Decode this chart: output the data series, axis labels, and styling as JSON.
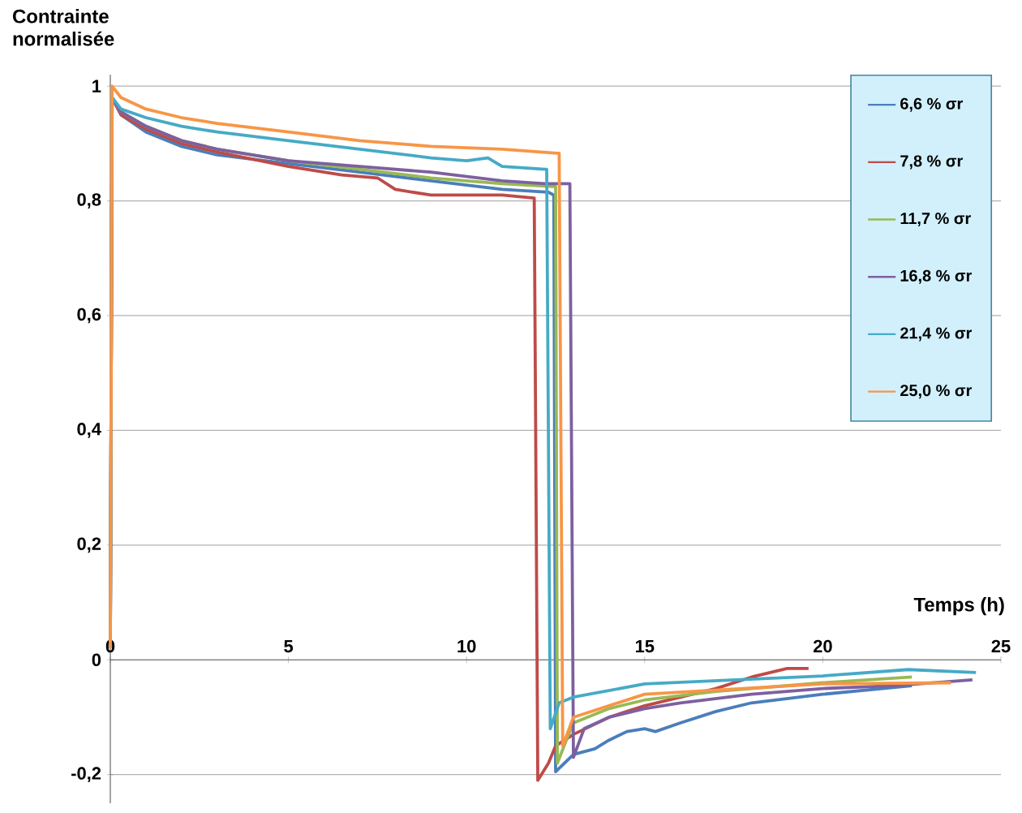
{
  "chart_data": {
    "type": "line",
    "xlabel": "Temps (h)",
    "ylabel": "Contrainte normalisée",
    "xlim": [
      0,
      25
    ],
    "ylim": [
      -0.25,
      1.02
    ],
    "xticks": [
      0,
      5,
      10,
      15,
      20,
      25
    ],
    "yticks": [
      {
        "value": -0.2,
        "label": "-0,2"
      },
      0,
      {
        "value": 0.2,
        "label": "0,2"
      },
      {
        "value": 0.4,
        "label": "0,4"
      },
      {
        "value": 0.6,
        "label": "0,6"
      },
      {
        "value": 0.8,
        "label": "0,8"
      },
      1
    ],
    "grid": "y",
    "legend": "top right",
    "marker": "none",
    "line_style": "solid",
    "series": [
      {
        "name": "6,6 % σr",
        "color": "#4a7ebb",
        "x": [
          0,
          0.05,
          0.3,
          1,
          2,
          3,
          5,
          7,
          9,
          11,
          12.3,
          12.45,
          12.5,
          13,
          13.6,
          14,
          14.5,
          15,
          15.3,
          16,
          17,
          18,
          20,
          22.5
        ],
        "values": [
          0.02,
          0.98,
          0.95,
          0.92,
          0.895,
          0.88,
          0.865,
          0.85,
          0.835,
          0.82,
          0.815,
          0.81,
          -0.195,
          -0.165,
          -0.155,
          -0.14,
          -0.125,
          -0.12,
          -0.125,
          -0.11,
          -0.09,
          -0.075,
          -0.06,
          -0.045
        ]
      },
      {
        "name": "7,8 % σr",
        "color": "#be4b48",
        "x": [
          0,
          0.05,
          0.3,
          1,
          2,
          3,
          5,
          6.5,
          7.5,
          8,
          9,
          10,
          11,
          11.9,
          12.0,
          12.3,
          12.5,
          13,
          14,
          15,
          17,
          18,
          19,
          19.6
        ],
        "values": [
          0.02,
          0.98,
          0.95,
          0.925,
          0.9,
          0.885,
          0.86,
          0.845,
          0.84,
          0.82,
          0.81,
          0.81,
          0.81,
          0.805,
          -0.21,
          -0.18,
          -0.15,
          -0.13,
          -0.1,
          -0.08,
          -0.05,
          -0.03,
          -0.015,
          -0.015
        ]
      },
      {
        "name": "11,7 % σr",
        "color": "#98b954",
        "x": [
          0,
          0.05,
          0.3,
          1,
          2,
          3,
          5,
          7,
          9,
          11,
          12.4,
          12.5,
          12.55,
          12.8,
          13,
          14,
          15,
          17,
          20,
          22.5
        ],
        "values": [
          0.02,
          0.98,
          0.955,
          0.93,
          0.905,
          0.89,
          0.87,
          0.855,
          0.84,
          0.83,
          0.825,
          0.825,
          -0.18,
          -0.14,
          -0.11,
          -0.085,
          -0.07,
          -0.055,
          -0.04,
          -0.03
        ]
      },
      {
        "name": "16,8 % σr",
        "color": "#7d60a0",
        "x": [
          0,
          0.05,
          0.3,
          1,
          2,
          3,
          5,
          7,
          9,
          11,
          12.2,
          12.9,
          13.0,
          13.3,
          14,
          15,
          16,
          18,
          20,
          22,
          24.2
        ],
        "values": [
          0.02,
          0.98,
          0.955,
          0.93,
          0.905,
          0.89,
          0.87,
          0.86,
          0.85,
          0.835,
          0.83,
          0.83,
          -0.17,
          -0.12,
          -0.1,
          -0.085,
          -0.075,
          -0.06,
          -0.05,
          -0.045,
          -0.035
        ]
      },
      {
        "name": "21,4 % σr",
        "color": "#46aac5",
        "x": [
          0,
          0.05,
          0.3,
          1,
          2,
          3,
          5,
          7,
          9,
          10,
          10.6,
          11,
          12.2,
          12.25,
          12.35,
          12.6,
          13,
          15,
          20,
          22.4,
          24.3
        ],
        "values": [
          0.02,
          0.98,
          0.96,
          0.945,
          0.93,
          0.92,
          0.905,
          0.89,
          0.875,
          0.87,
          0.875,
          0.86,
          0.855,
          0.855,
          -0.12,
          -0.075,
          -0.065,
          -0.042,
          -0.028,
          -0.017,
          -0.022
        ]
      },
      {
        "name": "25,0 % σr",
        "color": "#f79646",
        "x": [
          0,
          0.05,
          0.3,
          1,
          2,
          3,
          5,
          7,
          9,
          11,
          12.55,
          12.6,
          12.7,
          13,
          15,
          20,
          23.6
        ],
        "values": [
          0.02,
          1.0,
          0.98,
          0.96,
          0.945,
          0.935,
          0.92,
          0.905,
          0.895,
          0.89,
          0.883,
          0.883,
          -0.15,
          -0.1,
          -0.06,
          -0.042,
          -0.04
        ]
      }
    ]
  }
}
